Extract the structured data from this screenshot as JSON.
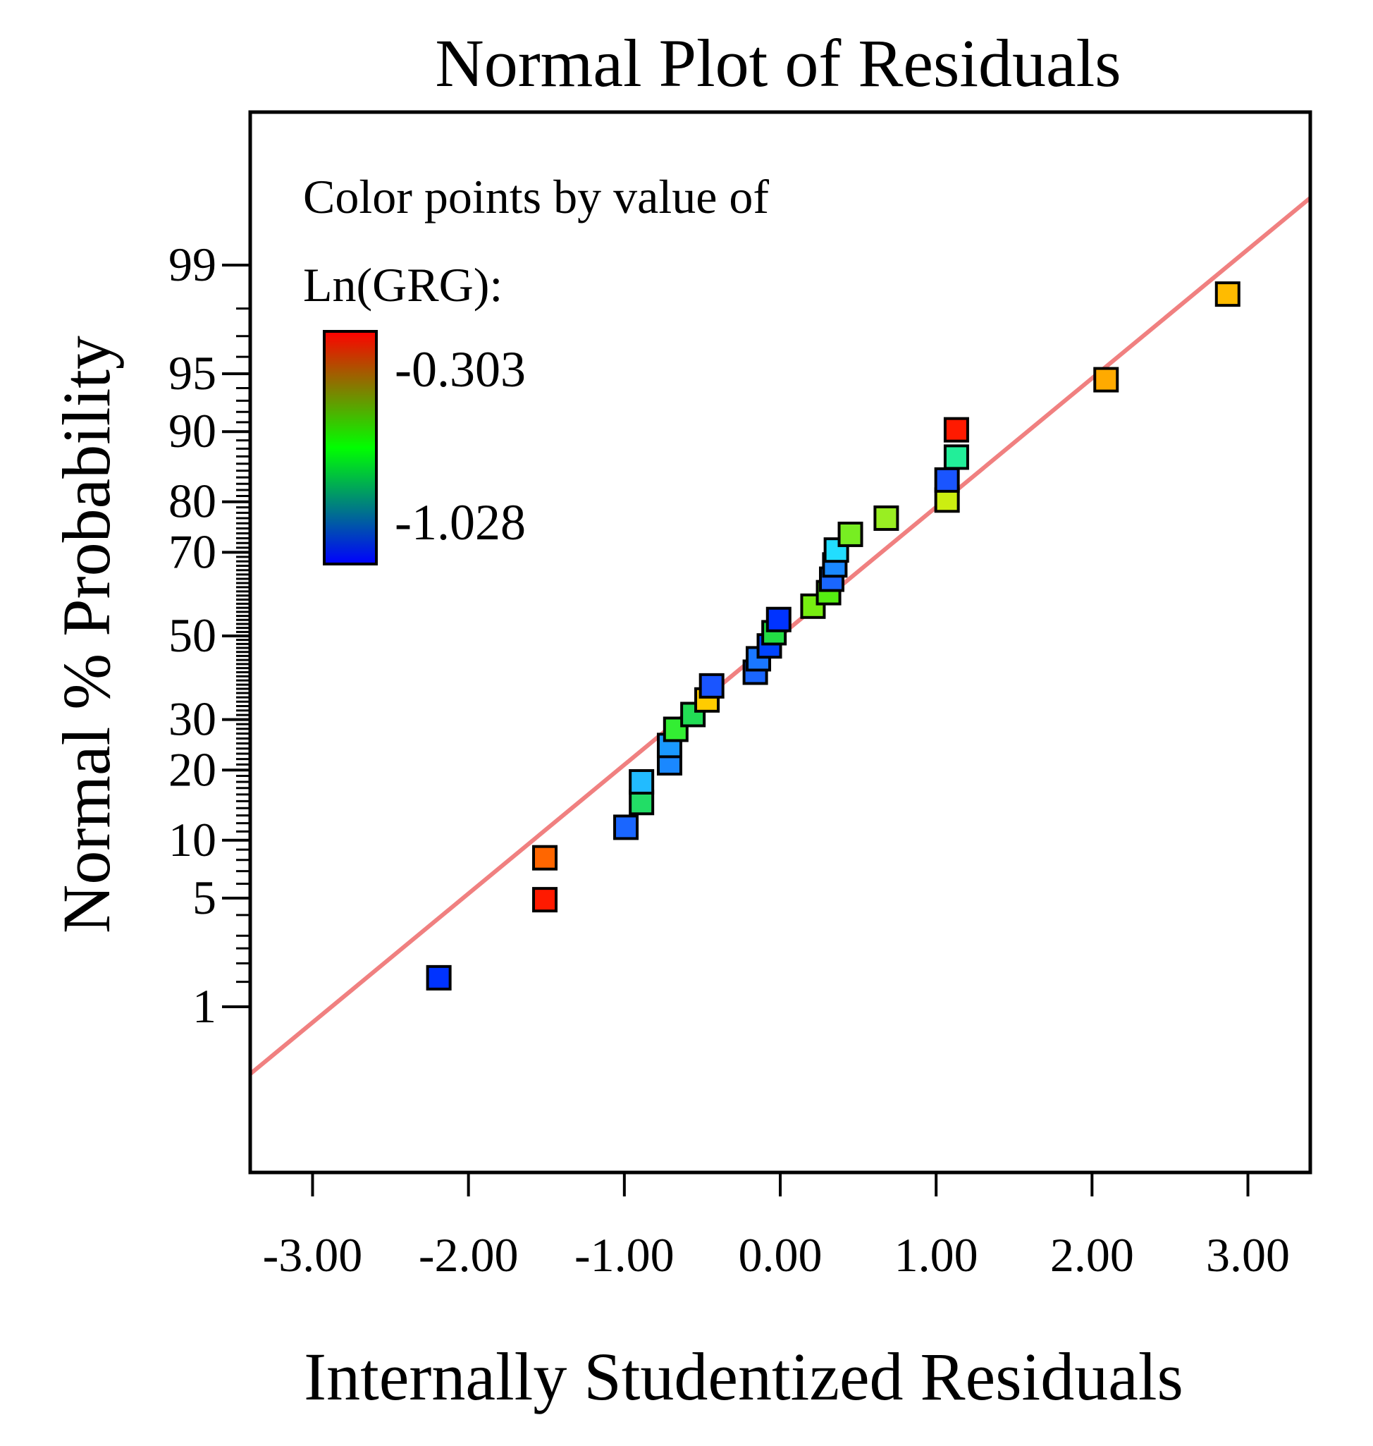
{
  "chart_data": {
    "type": "scatter",
    "title": "Normal Plot of Residuals",
    "xlabel": "Internally Studentized Residuals",
    "ylabel": "Normal % Probability",
    "xlim": [
      -3.4,
      3.4
    ],
    "x_ticks": [
      -3,
      -2,
      -1,
      0,
      1,
      2,
      3
    ],
    "x_tick_labels": [
      "-3.00",
      "-2.00",
      "-1.00",
      "0.00",
      "1.00",
      "2.00",
      "3.00"
    ],
    "y_scale": "normal-probability",
    "y_tick_labels": [
      "1",
      "5",
      "10",
      "20",
      "30",
      "50",
      "70",
      "80",
      "90",
      "95",
      "99"
    ],
    "y_ticks": [
      1,
      5,
      10,
      20,
      30,
      50,
      70,
      80,
      90,
      95,
      99
    ],
    "reference_line": {
      "color": "#f08080",
      "from": [
        -3.4,
        0.3
      ],
      "to": [
        3.4,
        99.7
      ]
    },
    "legend": {
      "title_line1": "Color points by value of",
      "title_line2": "Ln(GRG):",
      "max_label": "-0.303",
      "min_label": "-1.028",
      "max_color": "#ff0000",
      "min_color": "#0000ff",
      "placement": "top-left"
    },
    "points": [
      {
        "x": -2.19,
        "y": 1.6,
        "color": "#0033ff"
      },
      {
        "x": -1.51,
        "y": 4.9,
        "color": "#ff1a00"
      },
      {
        "x": -1.51,
        "y": 8.2,
        "color": "#ff6600"
      },
      {
        "x": -0.99,
        "y": 11.5,
        "color": "#1a66ff"
      },
      {
        "x": -0.89,
        "y": 14.8,
        "color": "#22dd66"
      },
      {
        "x": -0.89,
        "y": 18.0,
        "color": "#22bbff"
      },
      {
        "x": -0.71,
        "y": 21.3,
        "color": "#1a88ff"
      },
      {
        "x": -0.71,
        "y": 24.6,
        "color": "#1a99ff"
      },
      {
        "x": -0.67,
        "y": 27.9,
        "color": "#33ee33"
      },
      {
        "x": -0.56,
        "y": 31.1,
        "color": "#22dd55"
      },
      {
        "x": -0.47,
        "y": 34.4,
        "color": "#ffcc00"
      },
      {
        "x": -0.44,
        "y": 37.7,
        "color": "#1a55ff"
      },
      {
        "x": -0.16,
        "y": 41.0,
        "color": "#1a66ff"
      },
      {
        "x": -0.14,
        "y": 44.3,
        "color": "#1a77ff"
      },
      {
        "x": -0.07,
        "y": 47.5,
        "color": "#0044ff"
      },
      {
        "x": -0.04,
        "y": 50.8,
        "color": "#22dd44"
      },
      {
        "x": -0.01,
        "y": 54.1,
        "color": "#0033ff"
      },
      {
        "x": 0.21,
        "y": 57.4,
        "color": "#77ee11"
      },
      {
        "x": 0.31,
        "y": 60.7,
        "color": "#55ee11"
      },
      {
        "x": 0.33,
        "y": 63.9,
        "color": "#1a66ff"
      },
      {
        "x": 0.35,
        "y": 67.2,
        "color": "#1a88ff"
      },
      {
        "x": 0.36,
        "y": 70.5,
        "color": "#22ddff"
      },
      {
        "x": 0.45,
        "y": 73.8,
        "color": "#77ee22"
      },
      {
        "x": 0.68,
        "y": 77.0,
        "color": "#99ee22"
      },
      {
        "x": 1.07,
        "y": 80.3,
        "color": "#ccee11"
      },
      {
        "x": 1.07,
        "y": 83.6,
        "color": "#1a55ff"
      },
      {
        "x": 1.13,
        "y": 86.9,
        "color": "#22ee99"
      },
      {
        "x": 1.13,
        "y": 90.2,
        "color": "#ff1a00"
      },
      {
        "x": 2.09,
        "y": 94.6,
        "color": "#ffaa00"
      },
      {
        "x": 2.87,
        "y": 98.4,
        "color": "#ffbb00"
      }
    ]
  }
}
